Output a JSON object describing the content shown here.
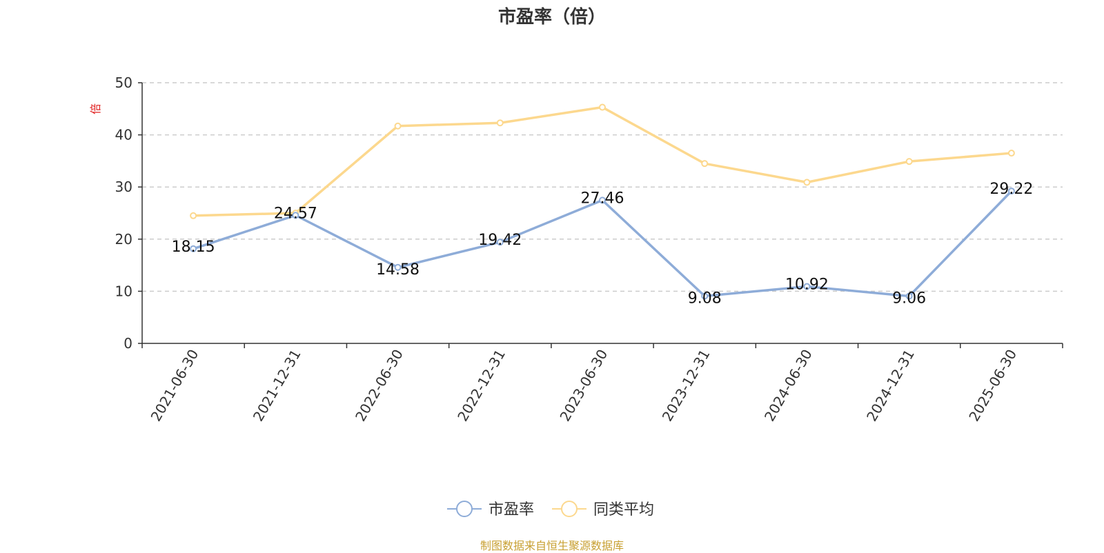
{
  "chart_data": {
    "type": "line",
    "title": "市盈率（倍）",
    "ylabel": "倍",
    "xlabel": "",
    "categories": [
      "2021-06-30",
      "2021-12-31",
      "2022-06-30",
      "2022-12-31",
      "2023-06-30",
      "2023-12-31",
      "2024-06-30",
      "2024-12-31",
      "2025-06-30"
    ],
    "ylim": [
      0,
      50
    ],
    "yticks": [
      "0",
      "10",
      "20",
      "30",
      "40",
      "50"
    ],
    "grid": true,
    "legend_position": "bottom",
    "series": [
      {
        "name": "市盈率",
        "color": "#8eacd8",
        "values": [
          18.15,
          24.57,
          14.58,
          19.42,
          27.46,
          9.08,
          10.92,
          9.06,
          29.22
        ],
        "labels": [
          "18.15",
          "24.57",
          "14.58",
          "19.42",
          "27.46",
          "9.08",
          "10.92",
          "9.06",
          "29.22"
        ]
      },
      {
        "name": "同类平均",
        "color": "#fcd88e",
        "values": [
          24.5,
          25.0,
          41.7,
          42.3,
          45.3,
          34.5,
          30.9,
          34.9,
          36.5
        ]
      }
    ]
  },
  "source": "制图数据来自恒生聚源数据库"
}
